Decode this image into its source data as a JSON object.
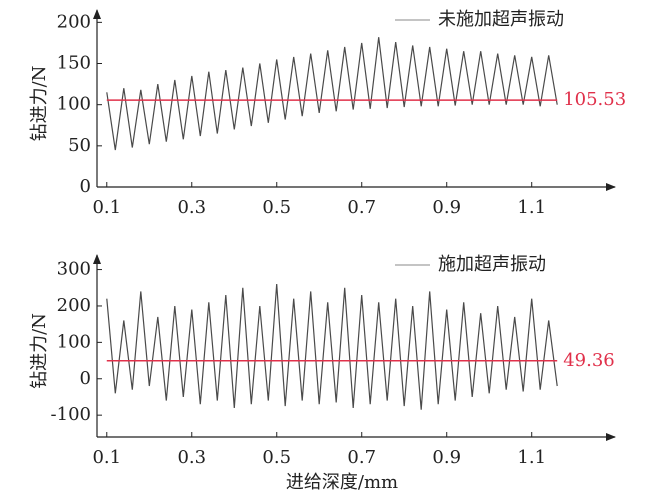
{
  "chart_data": [
    {
      "type": "line",
      "ylabel": "钻进力/N",
      "x": [
        0.1,
        0.12,
        0.14,
        0.16,
        0.18,
        0.2,
        0.22,
        0.24,
        0.26,
        0.28,
        0.3,
        0.32,
        0.34,
        0.36,
        0.38,
        0.4,
        0.42,
        0.44,
        0.46,
        0.48,
        0.5,
        0.52,
        0.54,
        0.56,
        0.58,
        0.6,
        0.62,
        0.64,
        0.66,
        0.68,
        0.7,
        0.72,
        0.74,
        0.76,
        0.78,
        0.8,
        0.82,
        0.84,
        0.86,
        0.88,
        0.9,
        0.92,
        0.94,
        0.96,
        0.98,
        1.0,
        1.02,
        1.04,
        1.06,
        1.08,
        1.1,
        1.12,
        1.14,
        1.16
      ],
      "series": [
        {
          "name": "未施加超声振动",
          "color": "#4a4a4a",
          "values": [
            115,
            45,
            120,
            48,
            118,
            52,
            125,
            55,
            130,
            58,
            135,
            62,
            140,
            65,
            142,
            70,
            145,
            74,
            150,
            78,
            155,
            82,
            158,
            86,
            162,
            90,
            166,
            92,
            170,
            94,
            175,
            95,
            182,
            96,
            176,
            97,
            172,
            98,
            170,
            98,
            168,
            99,
            165,
            100,
            165,
            100,
            162,
            100,
            160,
            100,
            158,
            98,
            160,
            100
          ]
        }
      ],
      "ref_line": {
        "value": 105.53,
        "color": "#e0304a"
      },
      "xlim": [
        0.077,
        1.296
      ],
      "xticks": [
        0.1,
        0.3,
        0.5,
        0.7,
        0.9,
        1.1
      ],
      "ylim": [
        0,
        215
      ],
      "yticks": [
        0,
        50,
        100,
        150,
        200
      ]
    },
    {
      "type": "line",
      "ylabel": "钻进力/N",
      "xlabel": "进给深度/mm",
      "x": [
        0.1,
        0.12,
        0.14,
        0.16,
        0.18,
        0.2,
        0.22,
        0.24,
        0.26,
        0.28,
        0.3,
        0.32,
        0.34,
        0.36,
        0.38,
        0.4,
        0.42,
        0.44,
        0.46,
        0.48,
        0.5,
        0.52,
        0.54,
        0.56,
        0.58,
        0.6,
        0.62,
        0.64,
        0.66,
        0.68,
        0.7,
        0.72,
        0.74,
        0.76,
        0.78,
        0.8,
        0.82,
        0.84,
        0.86,
        0.88,
        0.9,
        0.92,
        0.94,
        0.96,
        0.98,
        1.0,
        1.02,
        1.04,
        1.06,
        1.08,
        1.1,
        1.12,
        1.14,
        1.16
      ],
      "series": [
        {
          "name": "施加超声振动",
          "color": "#4a4a4a",
          "values": [
            220,
            -40,
            160,
            -30,
            240,
            -20,
            170,
            -60,
            200,
            -50,
            190,
            -70,
            210,
            -60,
            230,
            -80,
            250,
            -70,
            200,
            -60,
            260,
            -75,
            220,
            -60,
            240,
            -70,
            210,
            -65,
            250,
            -80,
            230,
            -70,
            210,
            -60,
            220,
            -75,
            200,
            -85,
            240,
            -70,
            190,
            -60,
            210,
            -50,
            180,
            -40,
            200,
            -30,
            170,
            -35,
            220,
            -30,
            160,
            -20
          ]
        }
      ],
      "ref_line": {
        "value": 49.36,
        "color": "#e0304a"
      },
      "xlim": [
        0.077,
        1.296
      ],
      "xticks": [
        0.1,
        0.3,
        0.5,
        0.7,
        0.9,
        1.1
      ],
      "ylim": [
        -160,
        340
      ],
      "yticks": [
        -100,
        0,
        100,
        200,
        300
      ]
    }
  ]
}
